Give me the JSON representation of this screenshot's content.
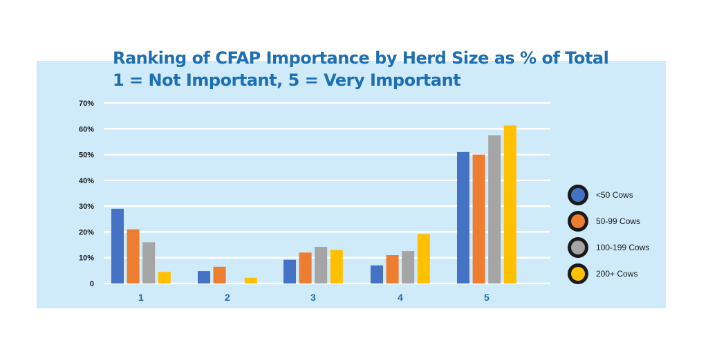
{
  "title_line1": "Ranking of CFAP Importance by Herd Size as % of Total",
  "title_line2": "1 = Not Important, 5 = Very Important",
  "chart_data": {
    "type": "bar",
    "title": "Ranking of CFAP Importance by Herd Size as % of Total",
    "subtitle": "1 = Not Important, 5 = Very Important",
    "categories": [
      "1",
      "2",
      "3",
      "4",
      "5"
    ],
    "ylim": [
      0,
      70
    ],
    "yticks": [
      0,
      10,
      20,
      30,
      40,
      50,
      60,
      70
    ],
    "ytick_labels": [
      "0",
      "10%",
      "20%",
      "30%",
      "40%",
      "50%",
      "60%",
      "70%"
    ],
    "grid": true,
    "legend_position": "right",
    "series": [
      {
        "name": "<50 Cows",
        "color": "#4472c4",
        "values": [
          29,
          4.8,
          9.2,
          7,
          51
        ]
      },
      {
        "name": "50-99 Cows",
        "color": "#ed7d31",
        "values": [
          21,
          6.5,
          12,
          11,
          50
        ]
      },
      {
        "name": "100-199 Cows",
        "color": "#a5a5a5",
        "values": [
          16,
          0,
          14.2,
          12.6,
          57.5
        ]
      },
      {
        "name": "200+ Cows",
        "color": "#ffc000",
        "values": [
          4.5,
          2.2,
          13,
          19.2,
          61.3
        ]
      }
    ]
  }
}
